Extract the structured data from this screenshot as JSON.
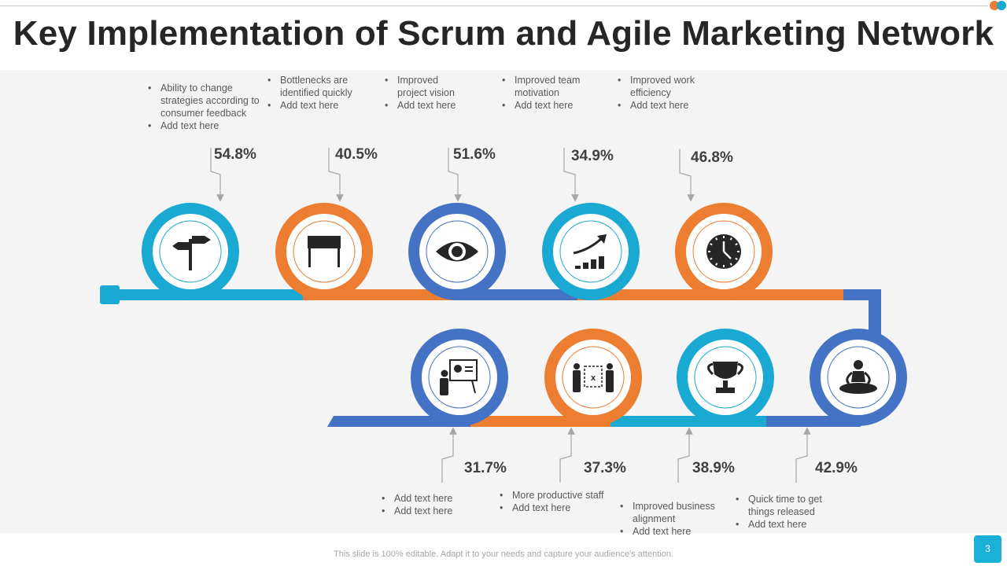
{
  "title": "Key Implementation of Scrum and Agile Marketing Network",
  "footer": "This slide is 100% editable. Adapt it to your needs and capture your audience's attention.",
  "page_number": "3",
  "colors": {
    "blue": "#4472c4",
    "cyan": "#1aa9d3",
    "orange": "#ed7d31",
    "panel": "#f4f4f4",
    "icon": "#262626"
  },
  "top_steps": [
    {
      "percent": "54.8%",
      "icon": "signpost-icon",
      "color": "cyan",
      "notes": [
        "Ability to change strategies according to consumer feedback",
        "Add text here"
      ]
    },
    {
      "percent": "40.5%",
      "icon": "table-icon",
      "color": "orange",
      "notes": [
        "Bottlenecks are identified  quickly",
        "Add text here"
      ]
    },
    {
      "percent": "51.6%",
      "icon": "eye-icon",
      "color": "blue",
      "notes": [
        "Improved project vision",
        "Add text here"
      ]
    },
    {
      "percent": "34.9%",
      "icon": "growth-chart-icon",
      "color": "cyan",
      "notes": [
        "Improved  team motivation",
        "Add text here"
      ]
    },
    {
      "percent": "46.8%",
      "icon": "clock-icon",
      "color": "orange",
      "notes": [
        "Improved   work efficiency",
        "Add text here"
      ]
    }
  ],
  "bottom_steps": [
    {
      "percent": "31.7%",
      "icon": "presentation-icon",
      "color": "blue",
      "notes": [
        "Add text here",
        "Add text here"
      ]
    },
    {
      "percent": "37.3%",
      "icon": "team-strategy-icon",
      "color": "orange",
      "notes": [
        "More  productive  staff",
        "Add text here"
      ]
    },
    {
      "percent": "38.9%",
      "icon": "trophy-icon",
      "color": "cyan",
      "notes": [
        "Improved  business alignment",
        "Add text here"
      ]
    },
    {
      "percent": "42.9%",
      "icon": "meditation-icon",
      "color": "blue",
      "notes": [
        "Quick time to get things released",
        "Add text here"
      ]
    }
  ]
}
